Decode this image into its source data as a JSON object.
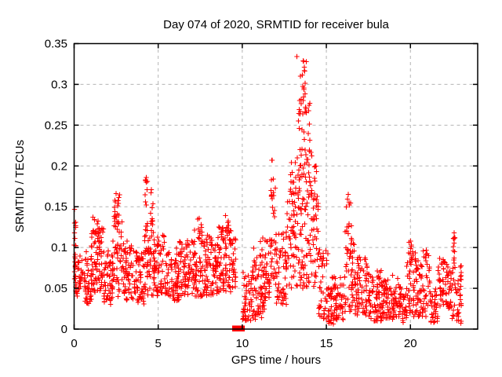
{
  "page": {
    "background": "#ffffff"
  },
  "chart_data": {
    "type": "scatter",
    "title": "Day 074 of 2020, SRMTID for receiver bula",
    "xlabel": "GPS time / hours",
    "ylabel": "SRMTID / TECUs",
    "xlim": [
      0,
      24
    ],
    "ylim": [
      0,
      0.35
    ],
    "xticks": [
      0,
      5,
      10,
      15,
      20
    ],
    "xtick_labels": [
      "0",
      "5",
      "10",
      "15",
      "20"
    ],
    "yticks": [
      0,
      0.05,
      0.1,
      0.15,
      0.2,
      0.25,
      0.3,
      0.35
    ],
    "ytick_labels": [
      "0",
      "0.05",
      "0.1",
      "0.15",
      "0.2",
      "0.25",
      "0.3",
      "0.35"
    ],
    "grid": {
      "visible": true,
      "style": "dashed",
      "color": "#b4b4b4"
    },
    "legend": "none",
    "marker": {
      "shape": "plus",
      "color": "#ff0000",
      "size": 7
    },
    "border_color": "#000000",
    "outage_marker": {
      "x0": 9.4,
      "x1": 10.15,
      "y": 0,
      "color": "#ff0000"
    },
    "data_end_hour": 23.05,
    "seed": 20200314,
    "point_clusters": [
      [
        0.0,
        0.12,
        20,
        0.045,
        0.145,
        1.0
      ],
      [
        0.05,
        0.6,
        34,
        0.04,
        0.09,
        1.2
      ],
      [
        0.6,
        1.05,
        45,
        0.03,
        0.095,
        1.2
      ],
      [
        1.0,
        1.75,
        75,
        0.045,
        0.125,
        1.1
      ],
      [
        1.1,
        1.55,
        12,
        0.105,
        0.138,
        1.0
      ],
      [
        1.75,
        2.3,
        55,
        0.03,
        0.1,
        1.25
      ],
      [
        2.3,
        2.95,
        52,
        0.04,
        0.14,
        1.1
      ],
      [
        2.4,
        2.7,
        14,
        0.115,
        0.166,
        1.0
      ],
      [
        2.95,
        3.55,
        55,
        0.035,
        0.108,
        1.2
      ],
      [
        3.55,
        4.15,
        55,
        0.03,
        0.098,
        1.2
      ],
      [
        4.15,
        4.75,
        58,
        0.04,
        0.13,
        1.1
      ],
      [
        4.22,
        4.38,
        10,
        0.12,
        0.185,
        1.0
      ],
      [
        4.52,
        4.68,
        8,
        0.12,
        0.168,
        1.0
      ],
      [
        4.75,
        5.45,
        62,
        0.04,
        0.115,
        1.2
      ],
      [
        5.45,
        6.25,
        70,
        0.035,
        0.1,
        1.25
      ],
      [
        6.25,
        7.05,
        70,
        0.04,
        0.11,
        1.2
      ],
      [
        7.05,
        7.75,
        65,
        0.04,
        0.122,
        1.15
      ],
      [
        7.3,
        7.6,
        7,
        0.11,
        0.136,
        1.0
      ],
      [
        7.75,
        8.6,
        82,
        0.04,
        0.117,
        1.1
      ],
      [
        8.6,
        9.35,
        72,
        0.045,
        0.127,
        1.1
      ],
      [
        8.75,
        9.25,
        10,
        0.108,
        0.139,
        1.0
      ],
      [
        9.35,
        9.62,
        26,
        0.05,
        0.112,
        1.1
      ],
      [
        10.0,
        10.55,
        46,
        0.01,
        0.072,
        1.2
      ],
      [
        10.55,
        11.35,
        72,
        0.012,
        0.09,
        1.2
      ],
      [
        10.65,
        11.25,
        9,
        0.078,
        0.113,
        1.0
      ],
      [
        11.35,
        11.68,
        30,
        0.03,
        0.11,
        1.1
      ],
      [
        11.68,
        11.98,
        26,
        0.05,
        0.175,
        0.9
      ],
      [
        11.72,
        11.88,
        7,
        0.155,
        0.207,
        1.0
      ],
      [
        11.98,
        12.62,
        56,
        0.03,
        0.125,
        1.2
      ],
      [
        12.62,
        13.12,
        42,
        0.05,
        0.17,
        1.0
      ],
      [
        12.82,
        13.06,
        8,
        0.155,
        0.2,
        1.0
      ],
      [
        13.12,
        14.18,
        95,
        0.05,
        0.22,
        1.1
      ],
      [
        13.3,
        14.02,
        40,
        0.14,
        0.285,
        1.0
      ],
      [
        13.35,
        13.82,
        20,
        0.26,
        0.334,
        1.0
      ],
      [
        14.18,
        14.52,
        30,
        0.05,
        0.17,
        1.0
      ],
      [
        14.28,
        14.46,
        6,
        0.16,
        0.2,
        1.0
      ],
      [
        14.52,
        15.12,
        46,
        0.012,
        0.1,
        1.35
      ],
      [
        15.12,
        16.02,
        76,
        0.006,
        0.066,
        1.2
      ],
      [
        16.02,
        16.68,
        52,
        0.02,
        0.12,
        1.1
      ],
      [
        16.18,
        16.5,
        10,
        0.11,
        0.165,
        1.0
      ],
      [
        16.68,
        17.45,
        66,
        0.015,
        0.092,
        1.2
      ],
      [
        17.45,
        18.35,
        76,
        0.01,
        0.072,
        1.2
      ],
      [
        18.35,
        19.35,
        80,
        0.012,
        0.066,
        1.2
      ],
      [
        19.35,
        19.78,
        34,
        0.008,
        0.052,
        1.2
      ],
      [
        19.78,
        20.32,
        42,
        0.015,
        0.095,
        1.1
      ],
      [
        19.9,
        20.15,
        6,
        0.088,
        0.108,
        1.0
      ],
      [
        20.32,
        21.22,
        70,
        0.015,
        0.085,
        1.2
      ],
      [
        20.7,
        21.1,
        6,
        0.078,
        0.097,
        1.0
      ],
      [
        21.22,
        21.62,
        30,
        0.006,
        0.05,
        1.2
      ],
      [
        21.62,
        22.42,
        62,
        0.025,
        0.088,
        1.1
      ],
      [
        22.42,
        23.05,
        48,
        0.006,
        0.078,
        1.1
      ],
      [
        22.55,
        22.68,
        10,
        0.08,
        0.118,
        1.0
      ]
    ],
    "notable_points": [
      [
        0.03,
        0.147
      ],
      [
        2.5,
        0.166
      ],
      [
        4.3,
        0.186
      ],
      [
        4.6,
        0.171
      ],
      [
        7.45,
        0.136
      ],
      [
        9.0,
        0.139
      ],
      [
        11.78,
        0.207
      ],
      [
        12.92,
        0.204
      ],
      [
        12.97,
        0.192
      ],
      [
        13.25,
        0.334
      ],
      [
        13.62,
        0.329
      ],
      [
        13.68,
        0.321
      ],
      [
        13.45,
        0.31
      ],
      [
        14.35,
        0.2
      ],
      [
        14.3,
        0.185
      ],
      [
        16.3,
        0.165
      ],
      [
        16.35,
        0.155
      ],
      [
        20.0,
        0.108
      ],
      [
        20.05,
        0.103
      ],
      [
        20.95,
        0.097
      ],
      [
        22.6,
        0.118
      ],
      [
        22.62,
        0.112
      ]
    ]
  }
}
